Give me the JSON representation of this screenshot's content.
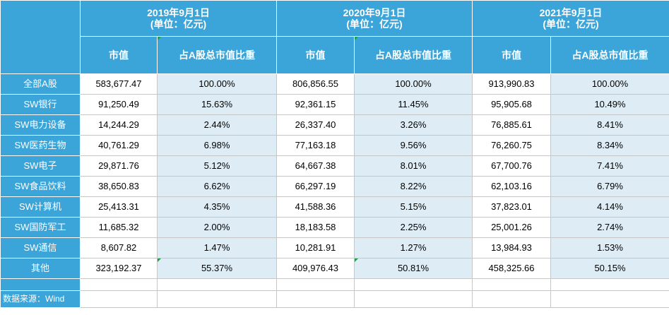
{
  "periods": [
    {
      "date": "2019年9月1日",
      "unit": "(单位：亿元)"
    },
    {
      "date": "2020年9月1日",
      "unit": "(单位：亿元)"
    },
    {
      "date": "2021年9月1日",
      "unit": "(单位：亿元)"
    }
  ],
  "subheaders": {
    "value": "市值",
    "share": "占A股总市值比重"
  },
  "rows": [
    {
      "label": "全部A股",
      "cells": [
        "583,677.47",
        "100.00%",
        "806,856.55",
        "100.00%",
        "913,990.83",
        "100.00%"
      ]
    },
    {
      "label": "SW银行",
      "cells": [
        "91,250.49",
        "15.63%",
        "92,361.15",
        "11.45%",
        "95,905.68",
        "10.49%"
      ]
    },
    {
      "label": "SW电力设备",
      "cells": [
        "14,244.29",
        "2.44%",
        "26,337.40",
        "3.26%",
        "76,885.61",
        "8.41%"
      ]
    },
    {
      "label": "SW医药生物",
      "cells": [
        "40,761.29",
        "6.98%",
        "77,163.18",
        "9.56%",
        "76,260.75",
        "8.34%"
      ]
    },
    {
      "label": "SW电子",
      "cells": [
        "29,871.76",
        "5.12%",
        "64,667.38",
        "8.01%",
        "67,700.76",
        "7.41%"
      ]
    },
    {
      "label": "SW食品饮料",
      "cells": [
        "38,650.83",
        "6.62%",
        "66,297.19",
        "8.22%",
        "62,103.16",
        "6.79%"
      ]
    },
    {
      "label": "SW计算机",
      "cells": [
        "25,413.31",
        "4.35%",
        "41,588.36",
        "5.15%",
        "37,823.01",
        "4.14%"
      ]
    },
    {
      "label": "SW国防军工",
      "cells": [
        "11,685.32",
        "2.00%",
        "18,183.58",
        "2.25%",
        "25,001.26",
        "2.74%"
      ]
    },
    {
      "label": "SW通信",
      "cells": [
        "8,607.82",
        "1.47%",
        "10,281.91",
        "1.27%",
        "13,984.93",
        "1.53%"
      ]
    },
    {
      "label": "其他",
      "cells": [
        "323,192.37",
        "55.37%",
        "409,976.43",
        "50.81%",
        "458,325.66",
        "50.15%"
      ]
    }
  ],
  "source": "数据来源：Wind"
}
